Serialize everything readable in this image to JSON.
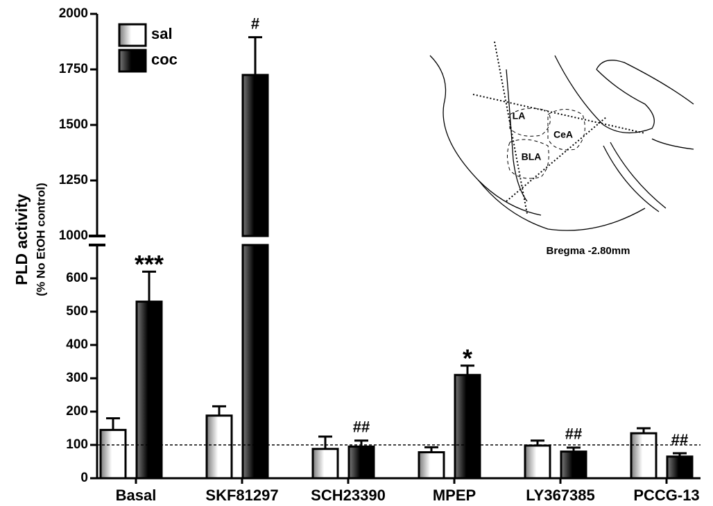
{
  "chart_data": {
    "type": "bar",
    "y_label": "PLD activity",
    "y_sublabel": "(% No EtOH control)",
    "categories": [
      "Basal",
      "SKF81297",
      "SCH23390",
      "MPEP",
      "LY367385",
      "PCCG-13"
    ],
    "series": [
      {
        "name": "sal",
        "color": "#ffffff",
        "values": [
          145,
          188,
          88,
          78,
          98,
          135
        ],
        "errors": [
          35,
          28,
          37,
          15,
          15,
          15
        ]
      },
      {
        "name": "coc",
        "color": "#000000",
        "values": [
          530,
          1725,
          95,
          310,
          80,
          65
        ],
        "errors": [
          90,
          170,
          18,
          28,
          12,
          10
        ]
      }
    ],
    "annotations": [
      "***",
      "#",
      "##",
      "*",
      "##",
      "##"
    ],
    "reference_line": 100,
    "y_segments": [
      {
        "ylim": [
          0,
          700
        ],
        "yticks": [
          0,
          100,
          200,
          300,
          400,
          500,
          600
        ]
      },
      {
        "ylim": [
          1000,
          2000
        ],
        "yticks": [
          1000,
          1250,
          1500,
          1750,
          2000
        ]
      }
    ],
    "inset": {
      "labels": [
        "LA",
        "CeA",
        "BLA"
      ],
      "caption": "Bregma -2.80mm"
    }
  }
}
